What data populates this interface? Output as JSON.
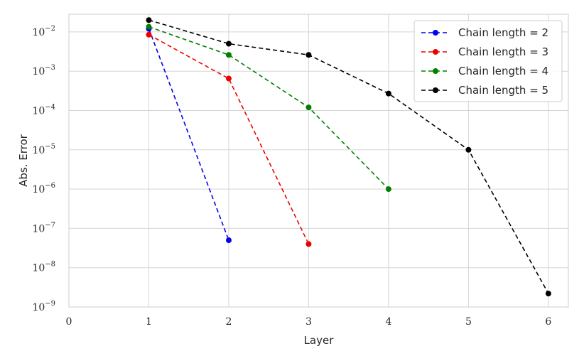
{
  "chart_data": {
    "type": "line",
    "title": "",
    "xlabel": "Layer",
    "ylabel": "Abs.  Error",
    "yscale": "log",
    "xlim": [
      0,
      6.25
    ],
    "ylim_exponents": [
      -9,
      -1.55
    ],
    "xticks": [
      0,
      1,
      2,
      3,
      4,
      5,
      6
    ],
    "ytick_exponents": [
      -9,
      -8,
      -7,
      -6,
      -5,
      -4,
      -3,
      -2
    ],
    "ytick_base": "10",
    "grid": true,
    "legend_position": "top-right",
    "series": [
      {
        "name": "Chain length = 2",
        "color": "#0000ee",
        "x": [
          1,
          2
        ],
        "y": [
          0.012,
          5e-08
        ]
      },
      {
        "name": "Chain length = 3",
        "color": "#ee0000",
        "x": [
          1,
          2,
          3
        ],
        "y": [
          0.0085,
          0.00065,
          4e-08
        ]
      },
      {
        "name": "Chain length = 4",
        "color": "#008000",
        "x": [
          1,
          2,
          3,
          4
        ],
        "y": [
          0.0135,
          0.0026,
          0.00012,
          1e-06
        ]
      },
      {
        "name": "Chain length = 5",
        "color": "#000000",
        "x": [
          1,
          2,
          3,
          4,
          5,
          6
        ],
        "y": [
          0.02,
          0.005,
          0.0026,
          0.00027,
          1e-05,
          2.2e-09
        ]
      }
    ]
  }
}
